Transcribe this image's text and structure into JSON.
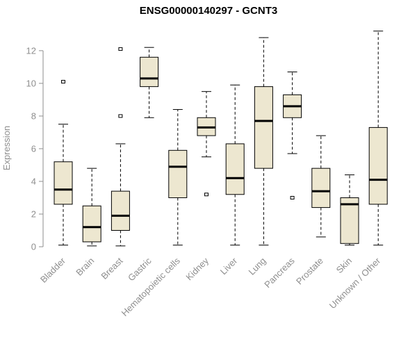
{
  "title": "ENSG00000140297 - GCNT3",
  "chart_data": {
    "type": "boxplot",
    "title": "ENSG00000140297 - GCNT3",
    "ylabel": "Expression",
    "xlabel": "",
    "ylim": [
      0,
      13.4
    ],
    "yticks": [
      0,
      2,
      4,
      6,
      8,
      10,
      12
    ],
    "grid": false,
    "legend": "none",
    "colors": {
      "box_fill": "#ede7d0",
      "box_stroke": "#000000",
      "median": "#000000",
      "whisker": "#000000",
      "axis": "#8e8e8e",
      "tick_label": "#8e8e8e",
      "title": "#000000",
      "background": "#ffffff"
    },
    "categories": [
      "Bladder",
      "Brain",
      "Breast",
      "Gastric",
      "Hematopoietic cells",
      "Kidney",
      "Liver",
      "Lung",
      "Pancreas",
      "Prostate",
      "Skin",
      "Unknown / Other"
    ],
    "boxes": [
      {
        "category": "Bladder",
        "whisker_low": 0.1,
        "q1": 2.6,
        "median": 3.5,
        "q3": 5.2,
        "whisker_high": 7.5,
        "outliers": [
          10.1
        ]
      },
      {
        "category": "Brain",
        "whisker_low": 0.05,
        "q1": 0.3,
        "median": 1.2,
        "q3": 2.5,
        "whisker_high": 4.8,
        "outliers": []
      },
      {
        "category": "Breast",
        "whisker_low": 0.05,
        "q1": 1.0,
        "median": 1.9,
        "q3": 3.4,
        "whisker_high": 6.3,
        "outliers": [
          8.0,
          12.1
        ]
      },
      {
        "category": "Gastric",
        "whisker_low": 7.9,
        "q1": 9.8,
        "median": 10.3,
        "q3": 11.6,
        "whisker_high": 12.2,
        "outliers": []
      },
      {
        "category": "Hematopoietic cells",
        "whisker_low": 0.1,
        "q1": 3.0,
        "median": 4.9,
        "q3": 5.9,
        "whisker_high": 8.4,
        "outliers": []
      },
      {
        "category": "Kidney",
        "whisker_low": 5.5,
        "q1": 6.8,
        "median": 7.3,
        "q3": 7.9,
        "whisker_high": 9.5,
        "outliers": [
          3.2
        ]
      },
      {
        "category": "Liver",
        "whisker_low": 0.1,
        "q1": 3.2,
        "median": 4.2,
        "q3": 6.3,
        "whisker_high": 9.9,
        "outliers": []
      },
      {
        "category": "Lung",
        "whisker_low": 0.1,
        "q1": 4.8,
        "median": 7.7,
        "q3": 9.8,
        "whisker_high": 12.8,
        "outliers": []
      },
      {
        "category": "Pancreas",
        "whisker_low": 5.7,
        "q1": 7.9,
        "median": 8.6,
        "q3": 9.3,
        "whisker_high": 10.7,
        "outliers": [
          3.0
        ]
      },
      {
        "category": "Prostate",
        "whisker_low": 0.6,
        "q1": 2.4,
        "median": 3.4,
        "q3": 4.8,
        "whisker_high": 6.8,
        "outliers": []
      },
      {
        "category": "Skin",
        "whisker_low": 0.1,
        "q1": 0.2,
        "median": 2.6,
        "q3": 3.0,
        "whisker_high": 4.4,
        "outliers": []
      },
      {
        "category": "Unknown / Other",
        "whisker_low": 0.1,
        "q1": 2.6,
        "median": 4.1,
        "q3": 7.3,
        "whisker_high": 13.2,
        "outliers": []
      }
    ]
  }
}
